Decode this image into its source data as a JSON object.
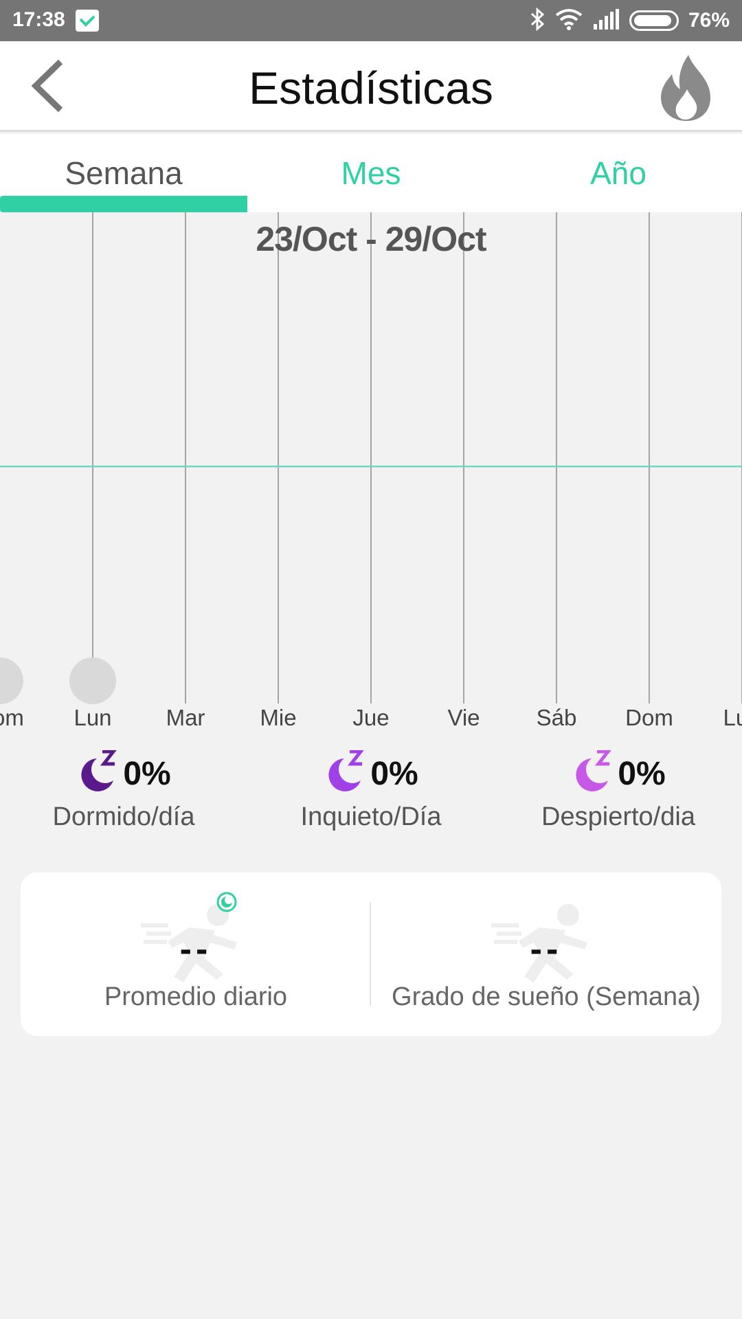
{
  "status_bar": {
    "time": "17:38",
    "battery": "76%",
    "icons": [
      "bluetooth-icon",
      "wifi-icon",
      "signal-icon",
      "battery-icon"
    ]
  },
  "header": {
    "title": "Estadísticas",
    "back_icon": "back-chevron-icon",
    "action_icon": "flame-icon"
  },
  "tabs": {
    "items": [
      "Semana",
      "Mes",
      "Año"
    ],
    "active": "Semana",
    "accent_color": "#2fd0a4"
  },
  "chart": {
    "date_range": "23/Oct - 29/Oct",
    "days": [
      "Dom",
      "Lun",
      "Mar",
      "Mie",
      "Jue",
      "Vie",
      "Sáb",
      "Dom",
      "Lun"
    ],
    "reference_line_color": "#6fd6c0",
    "marker_color": "#d9d9d9"
  },
  "stats": [
    {
      "value": "0%",
      "label": "Dormido/día",
      "icon": "moon-sleep-icon",
      "color": "#5a1a8c"
    },
    {
      "value": "0%",
      "label": "Inquieto/Día",
      "icon": "moon-sleep-icon",
      "color": "#a040e8"
    },
    {
      "value": "0%",
      "label": "Despierto/dia",
      "icon": "moon-sleep-icon",
      "color": "#c858e8"
    }
  ],
  "summary_card": {
    "left": {
      "value": "--",
      "label": "Promedio diario"
    },
    "right": {
      "value": "--",
      "label": "Grado de sueño (Semana)"
    }
  }
}
